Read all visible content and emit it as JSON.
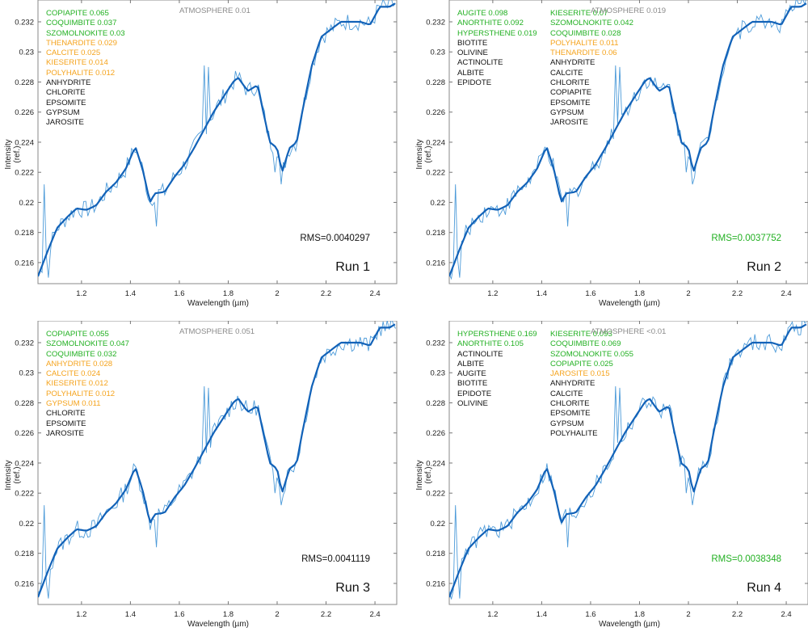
{
  "colors": {
    "fit": "#1262b8",
    "observed": "#4d9bd9",
    "positive": "#22b022",
    "minor": "#f5a31c",
    "absent": "#111111",
    "atmosphere": "#8a8a8a",
    "rms_good": "#22b022",
    "rms_normal": "#111111"
  },
  "chart_data": {
    "type": "line",
    "xlabel": "Wavelength (µm)",
    "ylabel": "Intensity (ref.)",
    "xlim": [
      1.022,
      2.489
    ],
    "ylim": [
      0.2146,
      0.23345
    ],
    "xticks": [
      1.2,
      1.4,
      1.6,
      1.8,
      2,
      2.2,
      2.4
    ],
    "xtick_labels": [
      "1.2",
      "1.4",
      "1.6",
      "1.8",
      "2",
      "2.2",
      "2.4"
    ],
    "yticks": [
      0.216,
      0.218,
      0.22,
      0.222,
      0.224,
      0.226,
      0.228,
      0.23,
      0.232
    ],
    "ytick_labels": [
      "0.216",
      "0.218",
      "0.22",
      "0.222",
      "0.224",
      "0.226",
      "0.228",
      "0.23",
      "0.232"
    ],
    "series": [
      {
        "name": "fit",
        "x": [
          1.02,
          1.06,
          1.1,
          1.14,
          1.18,
          1.22,
          1.26,
          1.3,
          1.34,
          1.38,
          1.42,
          1.45,
          1.48,
          1.5,
          1.54,
          1.58,
          1.62,
          1.66,
          1.7,
          1.74,
          1.78,
          1.82,
          1.84,
          1.88,
          1.92,
          1.95,
          1.97,
          2.0,
          2.02,
          2.05,
          2.08,
          2.1,
          2.14,
          2.18,
          2.22,
          2.26,
          2.3,
          2.34,
          2.38,
          2.42,
          2.46,
          2.49
        ],
        "y": [
          0.215,
          0.2167,
          0.2183,
          0.219,
          0.2196,
          0.2195,
          0.2198,
          0.2207,
          0.2213,
          0.2222,
          0.2237,
          0.2222,
          0.22,
          0.2206,
          0.2207,
          0.2217,
          0.2225,
          0.2236,
          0.2248,
          0.226,
          0.227,
          0.228,
          0.2283,
          0.2274,
          0.2278,
          0.2255,
          0.224,
          0.2236,
          0.222,
          0.2236,
          0.224,
          0.2258,
          0.229,
          0.231,
          0.2315,
          0.232,
          0.232,
          0.232,
          0.2318,
          0.233,
          0.233,
          0.2333
        ]
      },
      {
        "name": "observed",
        "noise_amplitude": 0.0006,
        "spikes": [
          [
            1.05,
            0.2212
          ],
          [
            1.065,
            0.215
          ],
          [
            1.7,
            0.2291
          ],
          [
            1.72,
            0.229
          ],
          [
            1.99,
            0.222
          ],
          [
            2.015,
            0.2212
          ],
          [
            1.505,
            0.2184
          ]
        ]
      }
    ]
  },
  "panels": [
    {
      "run": "Run 1",
      "rms": "RMS=0.0040297",
      "rms_status": "rms_normal",
      "atmosphere": "ATMOSPHERE 0.01",
      "col1": [
        {
          "t": "COPIAPITE 0.065",
          "s": "positive"
        },
        {
          "t": "COQUIMBITE 0.037",
          "s": "positive"
        },
        {
          "t": "SZOMOLNOKITE 0.03",
          "s": "positive"
        },
        {
          "t": "THENARDITE 0.029",
          "s": "minor"
        },
        {
          "t": "CALCITE 0.025",
          "s": "minor"
        },
        {
          "t": "KIESERITE 0.014",
          "s": "minor"
        },
        {
          "t": "POLYHALITE 0.012",
          "s": "minor"
        },
        {
          "t": "ANHYDRITE",
          "s": "absent"
        },
        {
          "t": "CHLORITE",
          "s": "absent"
        },
        {
          "t": "EPSOMITE",
          "s": "absent"
        },
        {
          "t": "GYPSUM",
          "s": "absent"
        },
        {
          "t": "JAROSITE",
          "s": "absent"
        }
      ],
      "col2": []
    },
    {
      "run": "Run 2",
      "rms": "RMS=0.0037752",
      "rms_status": "rms_good",
      "atmosphere": "ATMOSPHERE 0.019",
      "col1": [
        {
          "t": "AUGITE 0.098",
          "s": "positive"
        },
        {
          "t": "ANORTHITE 0.092",
          "s": "positive"
        },
        {
          "t": "HYPERSTHENE 0.019",
          "s": "positive"
        },
        {
          "t": "BIOTITE",
          "s": "absent"
        },
        {
          "t": "OLIVINE",
          "s": "absent"
        },
        {
          "t": "ACTINOLITE",
          "s": "absent"
        },
        {
          "t": "ALBITE",
          "s": "absent"
        },
        {
          "t": "EPIDOTE",
          "s": "absent"
        }
      ],
      "col2": [
        {
          "t": "KIESERITE 0.07",
          "s": "positive"
        },
        {
          "t": "SZOMOLNOKITE 0.042",
          "s": "positive"
        },
        {
          "t": "COQUIMBITE 0.028",
          "s": "positive"
        },
        {
          "t": "POLYHALITE 0.011",
          "s": "minor"
        },
        {
          "t": "THENARDITE 0.06",
          "s": "minor"
        },
        {
          "t": "ANHYDRITE",
          "s": "absent"
        },
        {
          "t": "CALCITE",
          "s": "absent"
        },
        {
          "t": "CHLORITE",
          "s": "absent"
        },
        {
          "t": "COPIAPITE",
          "s": "absent"
        },
        {
          "t": "EPSOMITE",
          "s": "absent"
        },
        {
          "t": "GYPSUM",
          "s": "absent"
        },
        {
          "t": "JAROSITE",
          "s": "absent"
        }
      ]
    },
    {
      "run": "Run 3",
      "rms": "RMS=0.0041119",
      "rms_status": "rms_normal",
      "atmosphere": "ATMOSPHERE 0.051",
      "col1": [
        {
          "t": "COPIAPITE 0.055",
          "s": "positive"
        },
        {
          "t": "SZOMOLNOKITE 0.047",
          "s": "positive"
        },
        {
          "t": "COQUIMBITE 0.032",
          "s": "positive"
        },
        {
          "t": "ANHYDRITE 0.028",
          "s": "minor"
        },
        {
          "t": "CALCITE 0.024",
          "s": "minor"
        },
        {
          "t": "KIESERITE 0.012",
          "s": "minor"
        },
        {
          "t": "POLYHALITE 0.012",
          "s": "minor"
        },
        {
          "t": "GYPSUM 0.011",
          "s": "minor"
        },
        {
          "t": "CHLORITE",
          "s": "absent"
        },
        {
          "t": "EPSOMITE",
          "s": "absent"
        },
        {
          "t": "JAROSITE",
          "s": "absent"
        }
      ],
      "col2": []
    },
    {
      "run": "Run 4",
      "rms": "RMS=0.0038348",
      "rms_status": "rms_good",
      "atmosphere": "ATMOSPHERE <0.01",
      "col1": [
        {
          "t": "HYPERSTHENE 0.169",
          "s": "positive"
        },
        {
          "t": "ANORTHITE 0.105",
          "s": "positive"
        },
        {
          "t": "ACTINOLITE",
          "s": "absent"
        },
        {
          "t": "ALBITE",
          "s": "absent"
        },
        {
          "t": "AUGITE",
          "s": "absent"
        },
        {
          "t": "BIOTITE",
          "s": "absent"
        },
        {
          "t": "EPIDOTE",
          "s": "absent"
        },
        {
          "t": "OLIVINE",
          "s": "absent"
        }
      ],
      "col2": [
        {
          "t": "KIESERITE 0.093",
          "s": "positive"
        },
        {
          "t": "COQUIMBITE 0.069",
          "s": "positive"
        },
        {
          "t": "SZOMOLNOKITE 0.055",
          "s": "positive"
        },
        {
          "t": "COPIAPITE 0.025",
          "s": "positive"
        },
        {
          "t": "JAROSITE 0.015",
          "s": "minor"
        },
        {
          "t": "ANHYDRITE",
          "s": "absent"
        },
        {
          "t": "CALCITE",
          "s": "absent"
        },
        {
          "t": "CHLORITE",
          "s": "absent"
        },
        {
          "t": "EPSOMITE",
          "s": "absent"
        },
        {
          "t": "GYPSUM",
          "s": "absent"
        },
        {
          "t": "POLYHALITE",
          "s": "absent"
        }
      ]
    }
  ]
}
